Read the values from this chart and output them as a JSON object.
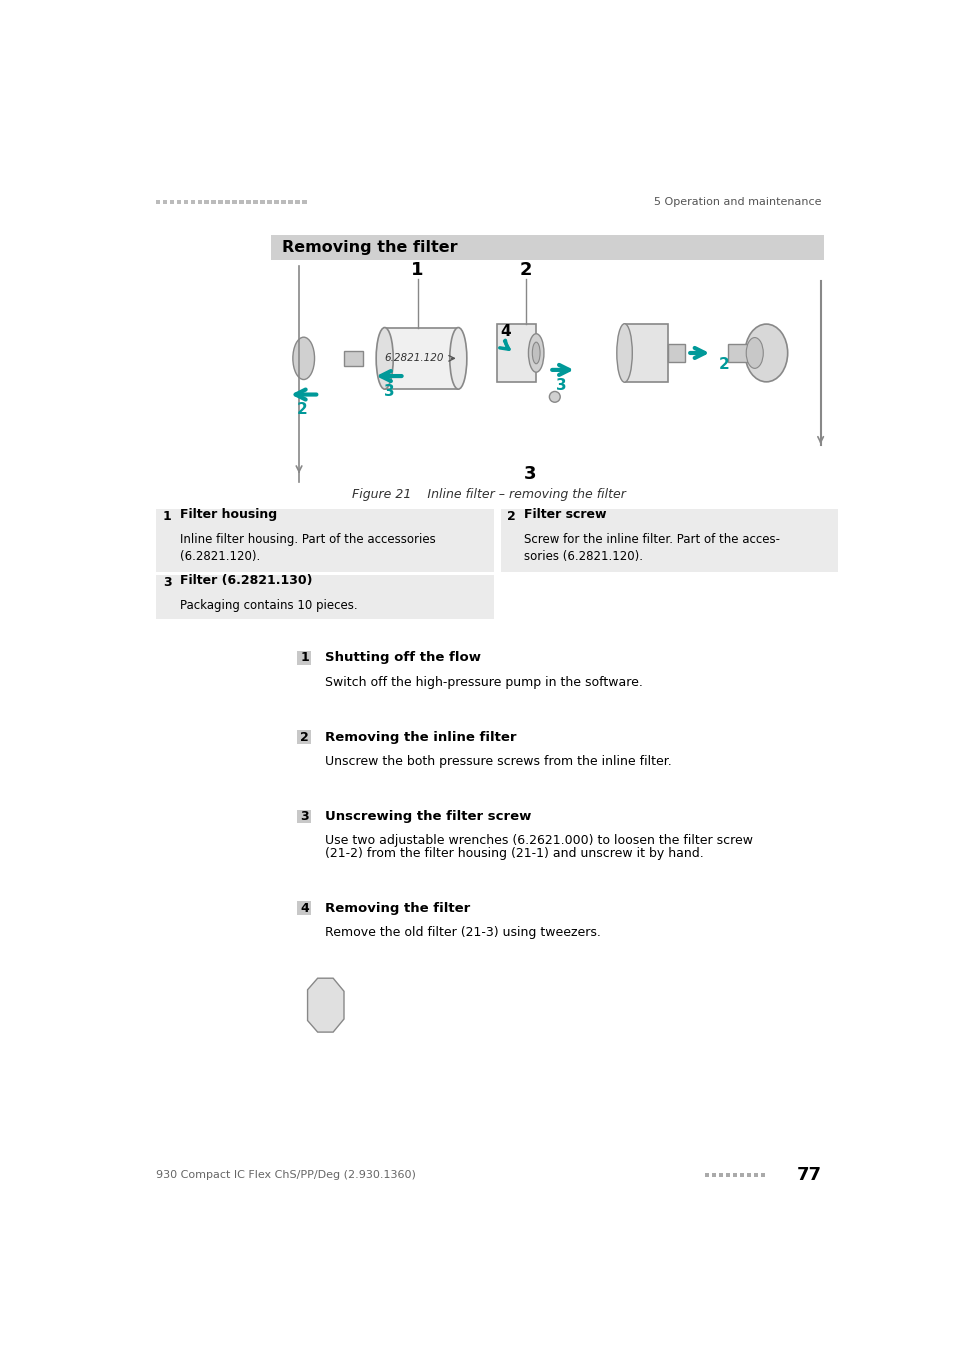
{
  "page_bg": "#ffffff",
  "header_left_color": "#b0b0b0",
  "header_right_text": "5 Operation and maintenance",
  "header_right_color": "#555555",
  "section_header_bg": "#d0d0d0",
  "section_header_text": "Removing the filter",
  "teal": "#009999",
  "figure_caption": "Figure 21    Inline filter – removing the filter",
  "label_items": [
    {
      "num": "1",
      "bold": "Filter housing",
      "text": "Inline filter housing. Part of the accessories\n(6.2821.120)."
    },
    {
      "num": "2",
      "bold": "Filter screw",
      "text": "Screw for the inline filter. Part of the acces-\nsories (6.2821.120)."
    },
    {
      "num": "3",
      "bold": "Filter (6.2821.130)",
      "text": "Packaging contains 10 pieces."
    }
  ],
  "steps": [
    {
      "num": "1",
      "bold": "Shutting off the flow",
      "text": "Switch off the high-pressure pump in the software."
    },
    {
      "num": "2",
      "bold": "Removing the inline filter",
      "text": "Unscrew the both pressure screws from the inline filter."
    },
    {
      "num": "3",
      "bold": "Unscrewing the filter screw",
      "text_parts": [
        {
          "t": "Use two adjustable wrenches (6.2621.000) to loosen the filter screw\n(21-",
          "b": false
        },
        {
          "t": "2",
          "b": true
        },
        {
          "t": ") from the filter housing (21-",
          "b": false
        },
        {
          "t": "1",
          "b": true
        },
        {
          "t": ") and unscrew it by hand.",
          "b": false
        }
      ]
    },
    {
      "num": "4",
      "bold": "Removing the filter",
      "text_parts": [
        {
          "t": "Remove the old filter (21-",
          "b": false
        },
        {
          "t": "3",
          "b": true
        },
        {
          "t": ") using tweezers.",
          "b": false
        }
      ]
    }
  ],
  "footer_left": "930 Compact IC Flex ChS/PP/Deg (2.930.1360)",
  "footer_page": "77"
}
